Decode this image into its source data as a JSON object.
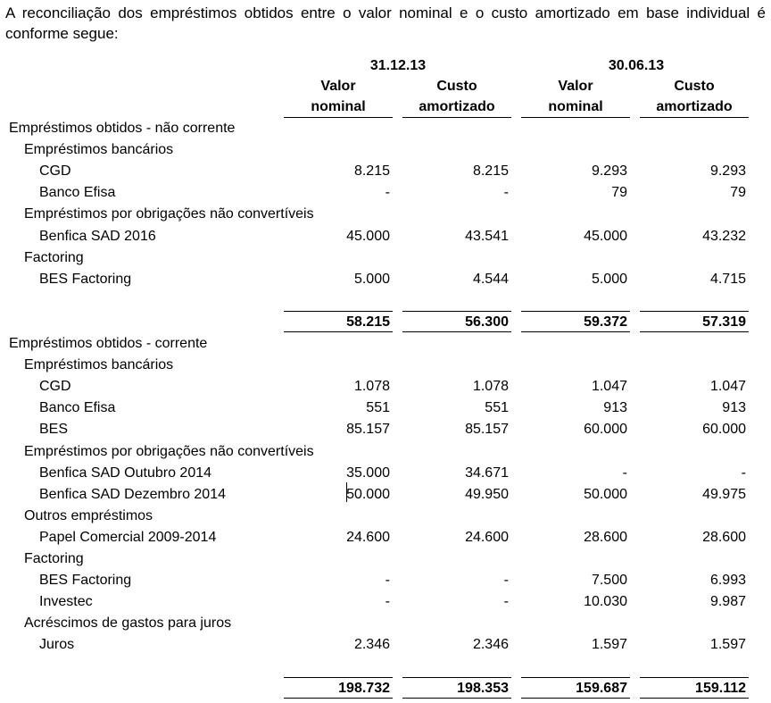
{
  "intro": "A reconciliação dos empréstimos obtidos entre o valor nominal e o custo amortizado em base individual é conforme segue:",
  "header": {
    "periods": [
      "31.12.13",
      "30.06.13"
    ],
    "col_line1": [
      "Valor",
      "Custo",
      "Valor",
      "Custo"
    ],
    "col_line2": [
      "nominal",
      "amortizado",
      "nominal",
      "amortizado"
    ]
  },
  "rows": [
    {
      "label": "Empréstimos obtidos - não corrente",
      "level": 0,
      "values": [
        "",
        "",
        "",
        ""
      ]
    },
    {
      "label": "Empréstimos bancários",
      "level": 1,
      "values": [
        "",
        "",
        "",
        ""
      ]
    },
    {
      "label": "CGD",
      "level": 2,
      "values": [
        "8.215",
        "8.215",
        "9.293",
        "9.293"
      ]
    },
    {
      "label": "Banco Efisa",
      "level": 2,
      "values": [
        "-",
        "-",
        "79",
        "79"
      ]
    },
    {
      "label": "Empréstimos por obrigações não convertíveis",
      "level": 1,
      "values": [
        "",
        "",
        "",
        ""
      ]
    },
    {
      "label": "Benfica SAD 2016",
      "level": 2,
      "values": [
        "45.000",
        "43.541",
        "45.000",
        "43.232"
      ]
    },
    {
      "label": "Factoring",
      "level": 1,
      "values": [
        "",
        "",
        "",
        ""
      ]
    },
    {
      "label": "BES Factoring",
      "level": 2,
      "values": [
        "5.000",
        "4.544",
        "5.000",
        "4.715"
      ]
    },
    {
      "label": "",
      "level": 0,
      "values": [
        "",
        "",
        "",
        ""
      ]
    },
    {
      "label": "",
      "level": 0,
      "total": true,
      "values": [
        "58.215",
        "56.300",
        "59.372",
        "57.319"
      ]
    },
    {
      "label": "Empréstimos obtidos - corrente",
      "level": 0,
      "values": [
        "",
        "",
        "",
        ""
      ]
    },
    {
      "label": "Empréstimos bancários",
      "level": 1,
      "values": [
        "",
        "",
        "",
        ""
      ]
    },
    {
      "label": "CGD",
      "level": 2,
      "values": [
        "1.078",
        "1.078",
        "1.047",
        "1.047"
      ]
    },
    {
      "label": "Banco Efisa",
      "level": 2,
      "values": [
        "551",
        "551",
        "913",
        "913"
      ]
    },
    {
      "label": "BES",
      "level": 2,
      "values": [
        "85.157",
        "85.157",
        "60.000",
        "60.000"
      ]
    },
    {
      "label": "Empréstimos por obrigações não convertíveis",
      "level": 1,
      "values": [
        "",
        "",
        "",
        ""
      ]
    },
    {
      "label": "Benfica SAD Outubro 2014",
      "level": 2,
      "values": [
        "35.000",
        "34.671",
        "-",
        "-"
      ]
    },
    {
      "label": "Benfica SAD Dezembro 2014",
      "level": 2,
      "values": [
        "50.000",
        "49.950",
        "50.000",
        "49.975"
      ]
    },
    {
      "label": "Outros empréstimos",
      "level": 1,
      "values": [
        "",
        "",
        "",
        ""
      ]
    },
    {
      "label": "Papel Comercial 2009-2014",
      "level": 2,
      "values": [
        "24.600",
        "24.600",
        "28.600",
        "28.600"
      ]
    },
    {
      "label": "Factoring",
      "level": 1,
      "values": [
        "",
        "",
        "",
        ""
      ]
    },
    {
      "label": "BES Factoring",
      "level": 2,
      "values": [
        "-",
        "-",
        "7.500",
        "6.993"
      ]
    },
    {
      "label": "Investec",
      "level": 2,
      "values": [
        "-",
        "-",
        "10.030",
        "9.987"
      ]
    },
    {
      "label": "Acréscimos de gastos para juros",
      "level": 1,
      "values": [
        "",
        "",
        "",
        ""
      ]
    },
    {
      "label": "Juros",
      "level": 2,
      "values": [
        "2.346",
        "2.346",
        "1.597",
        "1.597"
      ]
    },
    {
      "label": "",
      "level": 0,
      "values": [
        "",
        "",
        "",
        ""
      ]
    },
    {
      "label": "",
      "level": 0,
      "total": true,
      "values": [
        "198.732",
        "198.353",
        "159.687",
        "159.112"
      ]
    }
  ]
}
